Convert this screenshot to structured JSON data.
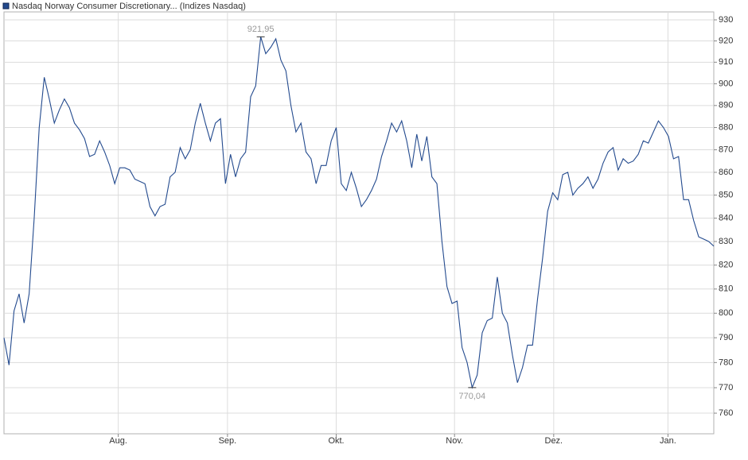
{
  "chart_data": {
    "type": "line",
    "title": "Nasdaq Norway Consumer Discretionary... (Indizes Nasdaq)",
    "color": "#234a8e",
    "log_scale": true,
    "grid": true,
    "values": [
      790,
      779,
      801,
      808,
      796,
      808,
      840,
      880,
      903,
      893,
      882,
      888,
      893,
      889,
      882,
      879,
      875,
      867,
      868,
      874,
      869,
      863,
      855,
      862,
      862,
      861,
      857,
      856,
      855,
      845,
      841,
      845,
      846,
      858,
      860,
      871,
      866,
      870,
      882,
      891,
      882,
      874,
      882,
      884,
      855,
      868,
      858,
      866,
      869,
      894,
      899,
      921.95,
      914,
      917,
      921,
      911,
      906,
      890,
      878,
      882,
      869,
      866,
      855,
      863,
      863,
      874,
      880,
      855,
      852,
      860,
      853,
      845,
      848,
      852,
      857,
      867,
      874,
      882,
      878,
      883,
      874,
      862,
      877,
      865,
      876,
      858,
      855,
      830,
      811,
      804,
      805,
      786,
      780,
      770.04,
      775,
      792,
      797,
      798,
      815,
      800,
      796,
      783,
      772,
      778,
      787,
      787,
      806,
      823,
      843,
      851,
      848,
      859,
      860,
      850,
      853,
      855,
      858,
      853,
      857,
      864,
      869,
      871,
      861,
      866,
      864,
      865,
      868,
      874,
      873,
      878,
      883,
      880,
      876,
      866,
      867,
      848,
      848,
      839,
      832,
      831,
      830,
      828
    ],
    "xlim": [
      0,
      141
    ],
    "xticks": [
      {
        "value": 22.7,
        "label": "Aug."
      },
      {
        "value": 44.4,
        "label": "Sep."
      },
      {
        "value": 66,
        "label": "Okt."
      },
      {
        "value": 89.5,
        "label": "Nov."
      },
      {
        "value": 109.2,
        "label": "Dez."
      },
      {
        "value": 131.9,
        "label": "Jan."
      }
    ],
    "ylim": [
      752,
      933.8
    ],
    "yticks": [
      760,
      770,
      780,
      790,
      800,
      810,
      820,
      830,
      840,
      850,
      860,
      870,
      880,
      890,
      900,
      910,
      920,
      930
    ],
    "annotations": [
      {
        "value": 921.95,
        "label": "921,95",
        "position": "above"
      },
      {
        "value": 770.04,
        "label": "770,04",
        "position": "below"
      }
    ]
  }
}
